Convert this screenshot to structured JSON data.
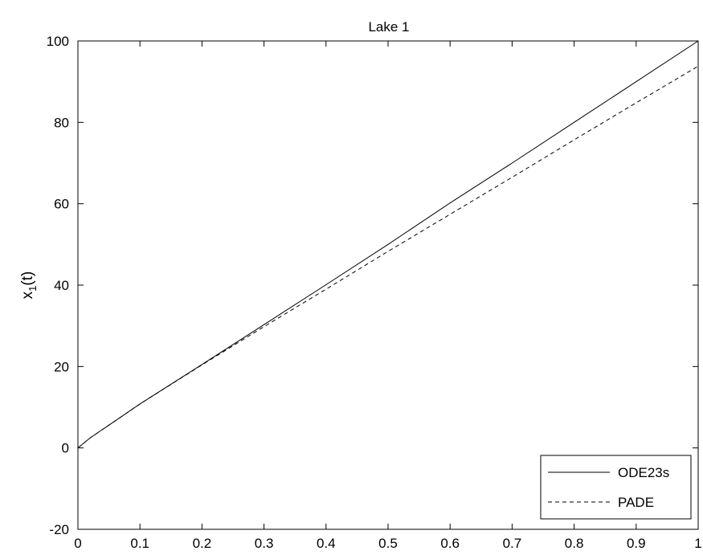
{
  "chart_data": {
    "type": "line",
    "title": "Lake 1",
    "xlabel": "",
    "ylabel": "x",
    "ylabel_subscript": "1",
    "ylabel_suffix": "(t)",
    "xlim": [
      0,
      1
    ],
    "ylim": [
      -20,
      100
    ],
    "xticks": [
      0,
      0.1,
      0.2,
      0.3,
      0.4,
      0.5,
      0.6,
      0.7,
      0.8,
      0.9,
      1
    ],
    "xtick_labels": [
      "0",
      "0.1",
      "0.2",
      "0.3",
      "0.4",
      "0.5",
      "0.6",
      "0.7",
      "0.8",
      "0.9",
      "1"
    ],
    "yticks": [
      -20,
      0,
      20,
      40,
      60,
      80,
      100
    ],
    "ytick_labels": [
      "-20",
      "0",
      "20",
      "40",
      "60",
      "80",
      "100"
    ],
    "grid": false,
    "legend_position": "bottom-right",
    "series": [
      {
        "name": "ODE23s",
        "style": "solid",
        "color": "#000000",
        "x": [
          0,
          0.02,
          0.05,
          0.1,
          0.2,
          0.3,
          0.4,
          0.5,
          0.6,
          0.7,
          0.8,
          0.9,
          1.0
        ],
        "y": [
          0,
          2.5,
          5.6,
          10.8,
          20.5,
          30.3,
          40.1,
          50.0,
          60.2,
          70.0,
          80.0,
          90.0,
          100.0
        ]
      },
      {
        "name": "PADE",
        "style": "dashed",
        "color": "#000000",
        "x": [
          0,
          0.02,
          0.05,
          0.1,
          0.2,
          0.3,
          0.4,
          0.5,
          0.6,
          0.7,
          0.8,
          0.9,
          1.0
        ],
        "y": [
          0,
          2.5,
          5.6,
          10.8,
          20.4,
          29.8,
          39.0,
          48.3,
          57.4,
          66.5,
          75.7,
          84.8,
          93.8
        ]
      }
    ]
  }
}
